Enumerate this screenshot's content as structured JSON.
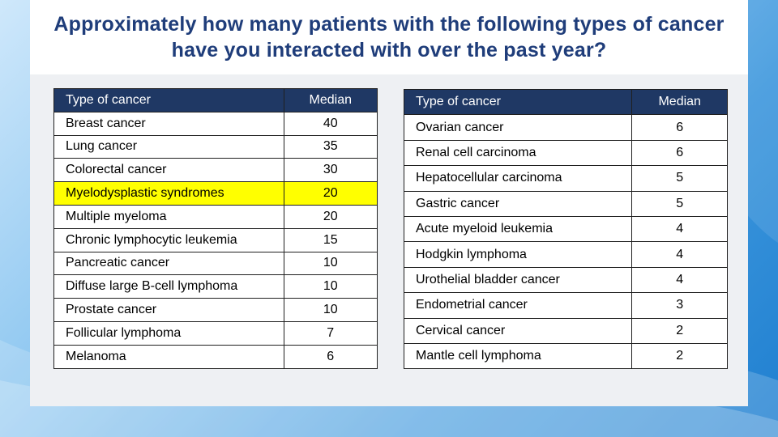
{
  "title": "Approximately how many patients with the following types of cancer have you interacted with over the past year?",
  "colors": {
    "header_bg": "#1f3864",
    "title": "#1f3d7a",
    "highlight": "#ffff00"
  },
  "left_table": {
    "headers": [
      "Type of cancer",
      "Median"
    ],
    "rows": [
      {
        "type": "Breast cancer",
        "median": "40",
        "highlight": false
      },
      {
        "type": "Lung cancer",
        "median": "35",
        "highlight": false
      },
      {
        "type": "Colorectal cancer",
        "median": "30",
        "highlight": false
      },
      {
        "type": "Myelodysplastic syndromes",
        "median": "20",
        "highlight": true
      },
      {
        "type": "Multiple myeloma",
        "median": "20",
        "highlight": false
      },
      {
        "type": "Chronic lymphocytic leukemia",
        "median": "15",
        "highlight": false
      },
      {
        "type": "Pancreatic cancer",
        "median": "10",
        "highlight": false
      },
      {
        "type": "Diffuse large B-cell lymphoma",
        "median": "10",
        "highlight": false
      },
      {
        "type": "Prostate cancer",
        "median": "10",
        "highlight": false
      },
      {
        "type": "Follicular lymphoma",
        "median": "7",
        "highlight": false
      },
      {
        "type": "Melanoma",
        "median": "6",
        "highlight": false
      }
    ]
  },
  "right_table": {
    "headers": [
      "Type of cancer",
      "Median"
    ],
    "rows": [
      {
        "type": "Ovarian cancer",
        "median": "6",
        "highlight": false
      },
      {
        "type": "Renal cell carcinoma",
        "median": "6",
        "highlight": false
      },
      {
        "type": "Hepatocellular carcinoma",
        "median": "5",
        "highlight": false
      },
      {
        "type": "Gastric cancer",
        "median": "5",
        "highlight": false
      },
      {
        "type": "Acute myeloid leukemia",
        "median": "4",
        "highlight": false
      },
      {
        "type": "Hodgkin lymphoma",
        "median": "4",
        "highlight": false
      },
      {
        "type": "Urothelial bladder cancer",
        "median": "4",
        "highlight": false
      },
      {
        "type": "Endometrial cancer",
        "median": "3",
        "highlight": false
      },
      {
        "type": "Cervical cancer",
        "median": "2",
        "highlight": false
      },
      {
        "type": "Mantle cell lymphoma",
        "median": "2",
        "highlight": false
      }
    ]
  }
}
